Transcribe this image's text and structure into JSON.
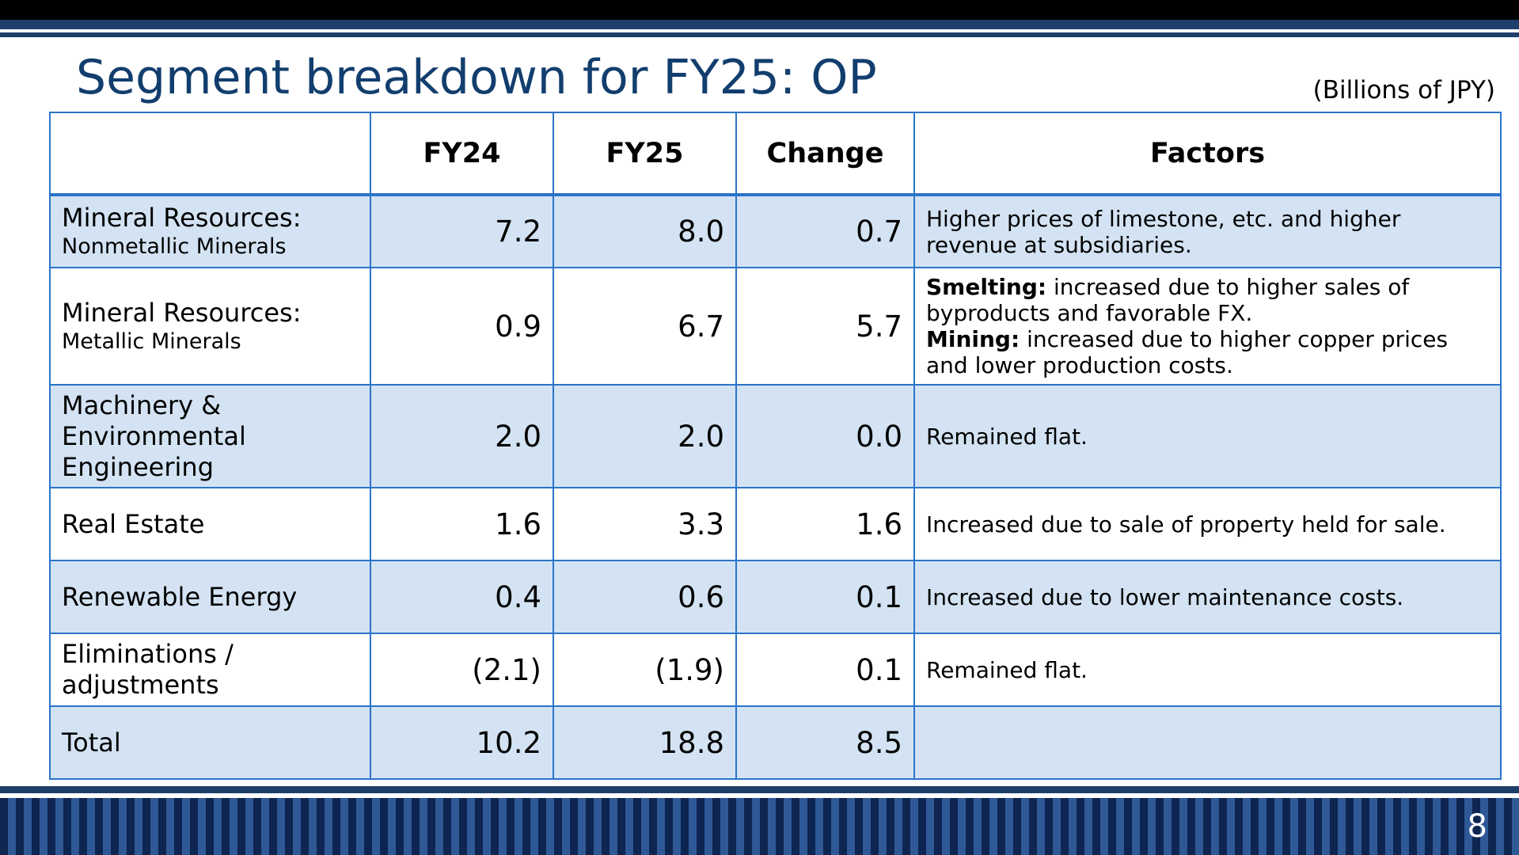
{
  "slide": {
    "title": "Segment breakdown for FY25: OP",
    "unit": "(Billions of JPY)",
    "page_number": "8"
  },
  "table": {
    "headers": [
      "",
      "FY24",
      "FY25",
      "Change",
      "Factors"
    ],
    "rows": [
      {
        "segment": "Mineral Resources:",
        "segment_sub": "Nonmetallic Minerals",
        "fy24": "7.2",
        "fy25": "8.0",
        "change": "0.7",
        "factors": [
          {
            "bold": "",
            "text": "Higher prices of limestone, etc. and higher revenue at subsidiaries."
          }
        ]
      },
      {
        "segment": "Mineral Resources:",
        "segment_sub": "Metallic Minerals",
        "fy24": "0.9",
        "fy25": "6.7",
        "change": "5.7",
        "factors": [
          {
            "bold": "Smelting:",
            "text": " increased due to higher sales of byproducts and favorable FX."
          },
          {
            "bold": "Mining:",
            "text": " increased due to higher copper prices and lower production costs."
          }
        ]
      },
      {
        "segment": "Machinery & Environmental Engineering",
        "segment_sub": "",
        "fy24": "2.0",
        "fy25": "2.0",
        "change": "0.0",
        "factors": [
          {
            "bold": "",
            "text": "Remained flat."
          }
        ]
      },
      {
        "segment": "Real Estate",
        "segment_sub": "",
        "fy24": "1.6",
        "fy25": "3.3",
        "change": "1.6",
        "factors": [
          {
            "bold": "",
            "text": "Increased due to sale of property held for sale."
          }
        ]
      },
      {
        "segment": "Renewable Energy",
        "segment_sub": "",
        "fy24": "0.4",
        "fy25": "0.6",
        "change": "0.1",
        "factors": [
          {
            "bold": "",
            "text": "Increased due to lower maintenance costs."
          }
        ]
      },
      {
        "segment": "Eliminations / adjustments",
        "segment_sub": "",
        "fy24": "(2.1)",
        "fy25": "(1.9)",
        "change": "0.1",
        "factors": [
          {
            "bold": "",
            "text": "Remained flat."
          }
        ]
      },
      {
        "segment": "Total",
        "segment_sub": "",
        "fy24": "10.2",
        "fy25": "18.8",
        "change": "8.5",
        "factors": []
      }
    ]
  },
  "colors": {
    "title": "#123e6e",
    "table_border": "#2b74c8",
    "row_shade": "#d3e3f3",
    "bar_navy": "#1f3f6b"
  }
}
